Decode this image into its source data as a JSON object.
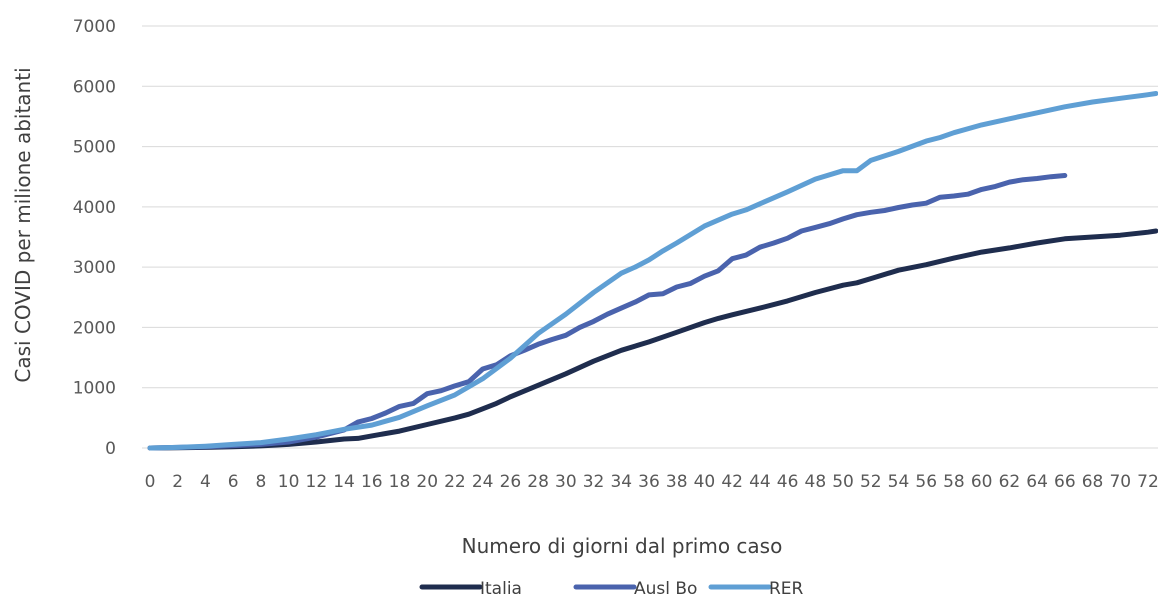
{
  "chart_data": {
    "type": "line",
    "xlabel": "Numero di giorni dal primo caso",
    "ylabel": "Casi COVID per milione abitanti",
    "ylim": [
      0,
      7000
    ],
    "yticks": [
      0,
      1000,
      2000,
      3000,
      4000,
      5000,
      6000,
      7000
    ],
    "xlim": [
      0,
      72
    ],
    "xticks": [
      0,
      2,
      4,
      6,
      8,
      10,
      12,
      14,
      16,
      18,
      20,
      22,
      24,
      26,
      28,
      30,
      32,
      34,
      36,
      38,
      40,
      42,
      44,
      46,
      48,
      50,
      52,
      54,
      56,
      58,
      60,
      62,
      64,
      66,
      68,
      70,
      72
    ],
    "grid": "horizontal",
    "legend_position": "bottom",
    "series": [
      {
        "name": "Italia",
        "color": "#1f2d4e",
        "x": [
          0,
          2,
          4,
          6,
          8,
          10,
          12,
          14,
          15,
          16,
          18,
          20,
          22,
          23,
          24,
          25,
          26,
          28,
          30,
          32,
          34,
          36,
          38,
          40,
          41,
          42,
          44,
          46,
          48,
          50,
          51,
          52,
          54,
          56,
          58,
          60,
          62,
          64,
          66,
          68,
          70,
          72,
          73
        ],
        "y": [
          0,
          5,
          10,
          20,
          35,
          60,
          100,
          150,
          160,
          200,
          280,
          390,
          500,
          560,
          650,
          740,
          850,
          1040,
          1230,
          1440,
          1620,
          1760,
          1920,
          2080,
          2150,
          2210,
          2320,
          2440,
          2580,
          2700,
          2740,
          2810,
          2950,
          3040,
          3150,
          3250,
          3320,
          3400,
          3470,
          3500,
          3530,
          3580,
          3600
        ]
      },
      {
        "name": "Ausl Bo",
        "color": "#4a63ad",
        "x": [
          0,
          2,
          4,
          6,
          8,
          10,
          12,
          14,
          15,
          16,
          17,
          18,
          19,
          20,
          21,
          22,
          23,
          24,
          25,
          26,
          27,
          28,
          29,
          30,
          31,
          32,
          33,
          34,
          35,
          36,
          37,
          38,
          39,
          40,
          41,
          42,
          43,
          44,
          45,
          46,
          47,
          48,
          49,
          50,
          51,
          52,
          53,
          54,
          55,
          56,
          57,
          58,
          59,
          60,
          61,
          62,
          63,
          64,
          65,
          66
        ],
        "y": [
          0,
          10,
          20,
          40,
          60,
          100,
          180,
          300,
          430,
          490,
          580,
          690,
          740,
          900,
          950,
          1030,
          1100,
          1310,
          1380,
          1530,
          1620,
          1720,
          1800,
          1870,
          2000,
          2100,
          2220,
          2320,
          2420,
          2540,
          2560,
          2670,
          2730,
          2850,
          2940,
          3140,
          3200,
          3330,
          3400,
          3480,
          3600,
          3660,
          3720,
          3800,
          3870,
          3910,
          3940,
          3990,
          4030,
          4060,
          4160,
          4180,
          4210,
          4290,
          4340,
          4410,
          4450,
          4470,
          4500,
          4520
        ]
      },
      {
        "name": "RER",
        "color": "#5f9fd4",
        "x": [
          0,
          2,
          4,
          6,
          8,
          10,
          12,
          14,
          16,
          18,
          20,
          22,
          24,
          26,
          28,
          30,
          32,
          34,
          35,
          36,
          37,
          38,
          40,
          42,
          43,
          44,
          46,
          48,
          50,
          51,
          52,
          54,
          56,
          57,
          58,
          60,
          62,
          64,
          66,
          68,
          70,
          72,
          73
        ],
        "y": [
          0,
          10,
          30,
          60,
          90,
          150,
          220,
          310,
          380,
          510,
          700,
          880,
          1150,
          1490,
          1900,
          2220,
          2580,
          2900,
          3000,
          3120,
          3270,
          3400,
          3680,
          3880,
          3950,
          4050,
          4250,
          4460,
          4600,
          4600,
          4770,
          4920,
          5090,
          5150,
          5230,
          5360,
          5460,
          5560,
          5660,
          5740,
          5800,
          5860,
          5880
        ]
      }
    ]
  }
}
